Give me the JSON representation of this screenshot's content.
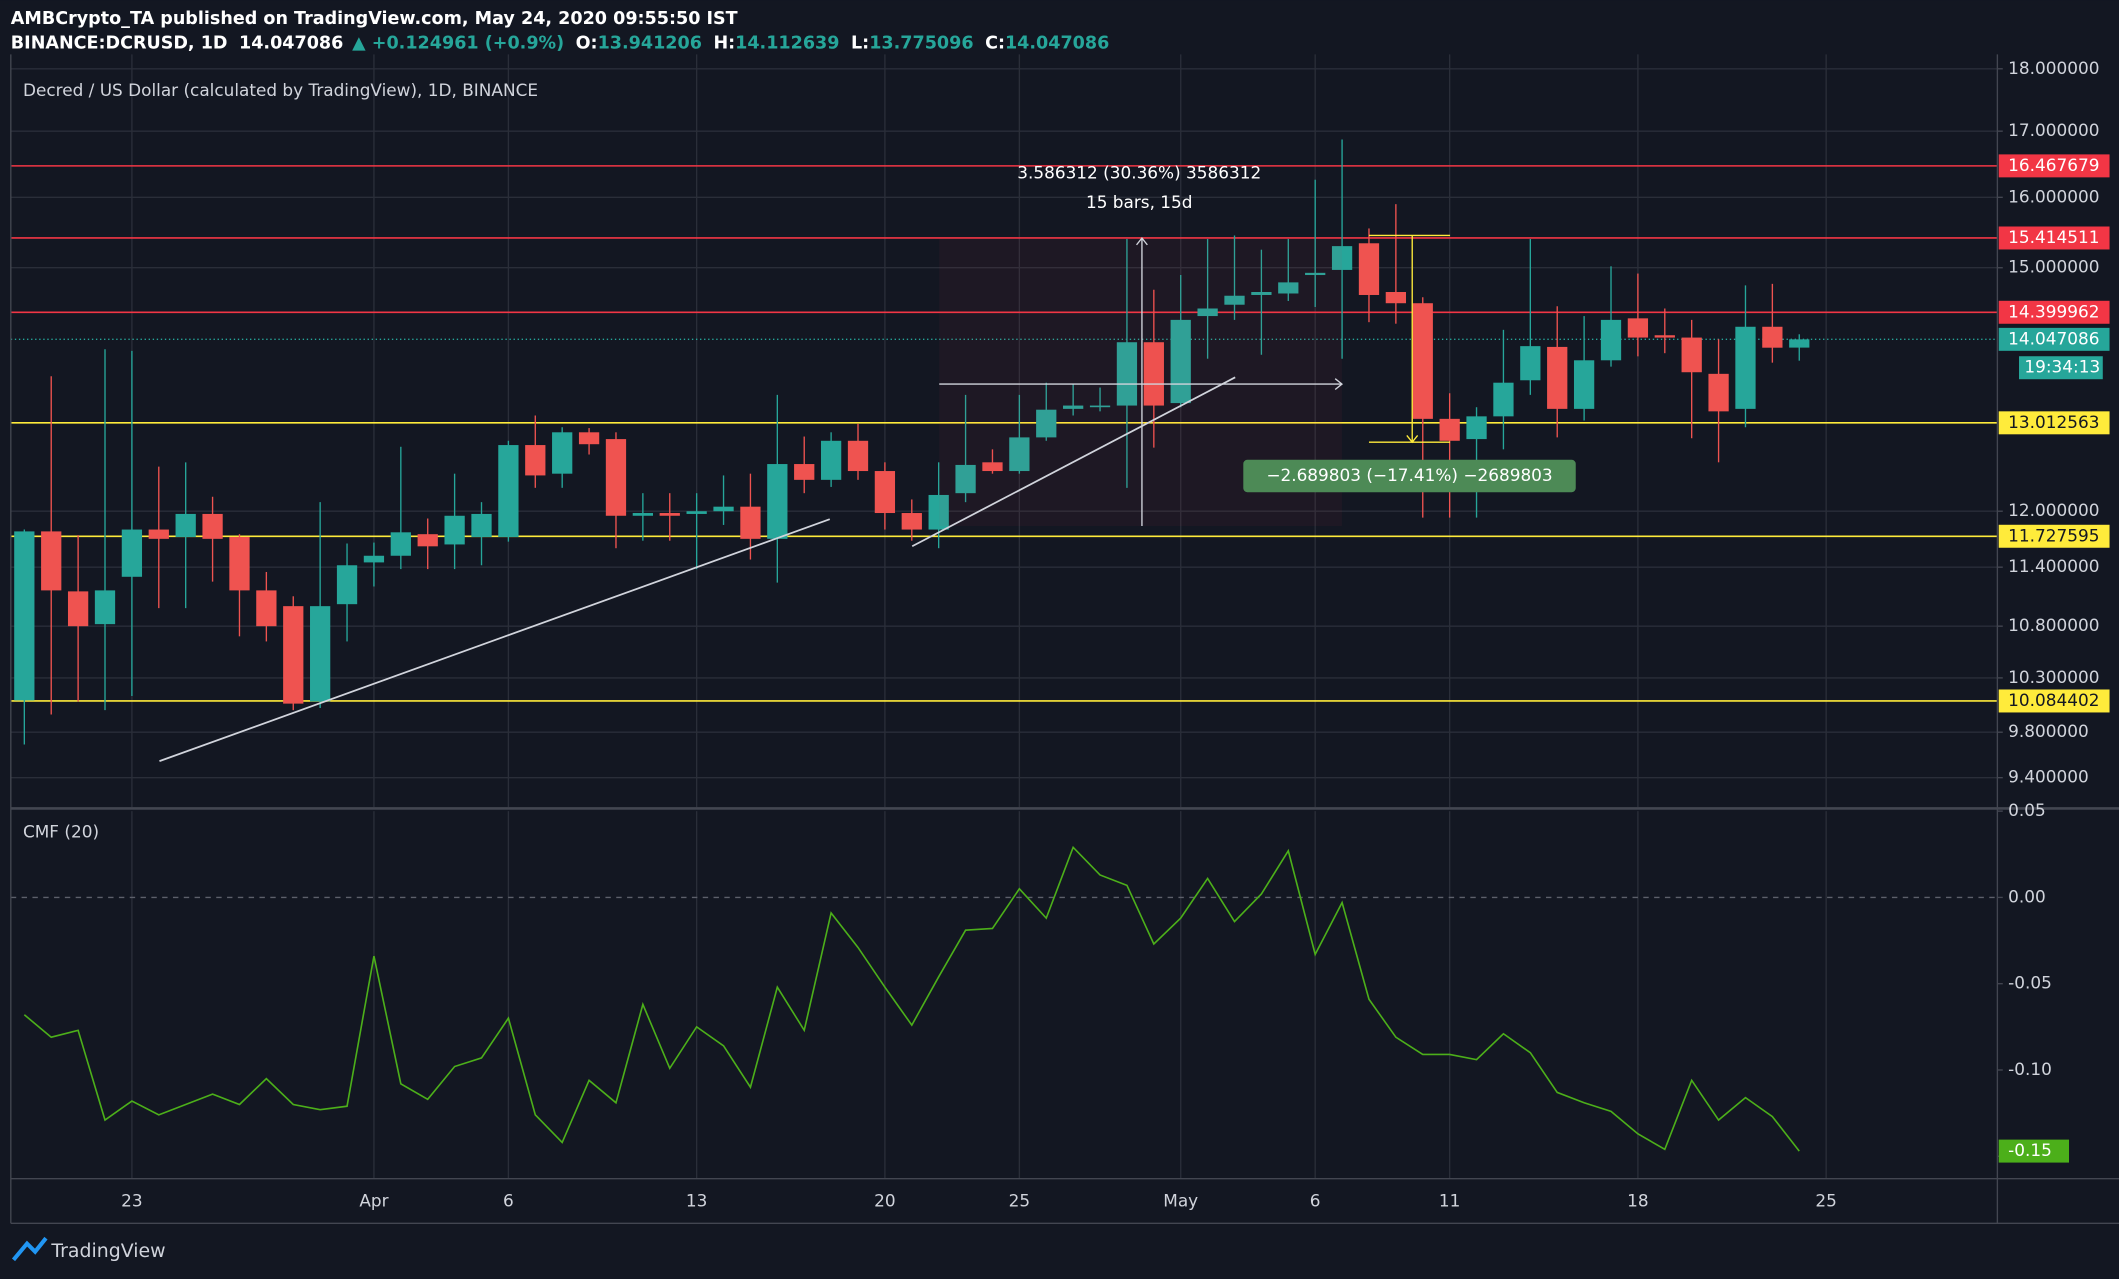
{
  "header": {
    "published": "AMBCrypto_TA published on TradingView.com, May 24, 2020 09:55:50 IST",
    "symbol": "BINANCE:DCRUSD, 1D",
    "price": "14.047086",
    "change": "▲ +0.124961 (+0.9%)",
    "ohlc": [
      {
        "label": "O:",
        "value": "13.941206"
      },
      {
        "label": "H:",
        "value": "14.112639"
      },
      {
        "label": "L:",
        "value": "13.775096"
      },
      {
        "label": "C:",
        "value": "14.047086"
      }
    ]
  },
  "footer": {
    "brand": "TradingView"
  },
  "chart_data": [
    {
      "type": "candlestick",
      "title": "Decred / US Dollar (calculated by TradingView), 1D, BINANCE",
      "categories": [
        null,
        null,
        null,
        null,
        "23",
        null,
        null,
        null,
        null,
        null,
        null,
        null,
        null,
        "Apr",
        null,
        null,
        null,
        null,
        "6",
        null,
        null,
        null,
        null,
        null,
        null,
        "13",
        null,
        null,
        null,
        null,
        null,
        null,
        "20",
        null,
        null,
        null,
        null,
        "25",
        null,
        null,
        null,
        null,
        null,
        "May",
        null,
        null,
        null,
        null,
        "6",
        null,
        null,
        null,
        null,
        "11",
        null,
        null,
        null,
        null,
        null,
        null,
        "18",
        null,
        null,
        null,
        null,
        null,
        null,
        "25"
      ],
      "open": [
        10.09,
        11.78,
        11.15,
        10.82,
        11.3,
        11.8,
        11.72,
        11.97,
        11.72,
        11.16,
        11.0,
        10.08,
        11.02,
        11.45,
        11.52,
        11.75,
        11.64,
        11.72,
        11.72,
        12.75,
        12.42,
        12.9,
        12.82,
        11.95,
        11.98,
        11.97,
        12.0,
        12.05,
        11.7,
        12.53,
        12.35,
        12.8,
        12.45,
        11.98,
        11.8,
        12.2,
        12.55,
        12.45,
        12.84,
        13.18,
        13.2,
        13.22,
        14.01,
        13.25,
        14.35,
        14.5,
        14.63,
        14.65,
        14.9,
        14.97,
        15.34,
        14.67,
        14.52,
        13.06,
        12.82,
        13.09,
        13.53,
        13.95,
        13.18,
        13.78,
        14.32,
        14.1,
        14.07,
        13.61,
        13.18,
        14.21,
        13.941206,
        null
      ],
      "high": [
        11.8,
        13.58,
        11.74,
        13.92,
        13.9,
        12.5,
        12.55,
        12.16,
        11.75,
        11.35,
        11.1,
        12.1,
        11.65,
        11.66,
        12.73,
        11.92,
        12.42,
        12.1,
        12.8,
        13.1,
        12.96,
        12.95,
        12.9,
        12.2,
        12.2,
        12.2,
        12.4,
        12.42,
        13.35,
        12.85,
        12.9,
        13.0,
        12.55,
        12.13,
        12.55,
        13.35,
        12.7,
        13.35,
        13.5,
        13.48,
        13.44,
        15.4,
        14.7,
        14.9,
        15.4,
        15.45,
        15.25,
        15.4,
        16.26,
        16.87,
        15.55,
        15.9,
        14.6,
        13.37,
        13.2,
        14.17,
        15.4,
        14.48,
        14.35,
        15.02,
        14.92,
        14.45,
        14.3,
        14.05,
        14.76,
        14.78,
        14.112639,
        null
      ],
      "low": [
        9.69,
        9.96,
        10.08,
        10.0,
        10.13,
        10.98,
        10.98,
        11.25,
        10.7,
        10.65,
        10.0,
        10.02,
        10.65,
        11.2,
        11.38,
        11.38,
        11.38,
        11.42,
        11.67,
        12.26,
        12.26,
        12.64,
        11.6,
        11.68,
        11.68,
        11.38,
        11.85,
        11.48,
        11.24,
        12.2,
        12.27,
        12.35,
        11.8,
        11.68,
        11.6,
        12.1,
        12.42,
        12.42,
        12.8,
        13.1,
        13.15,
        12.26,
        12.72,
        13.2,
        13.8,
        14.3,
        13.85,
        14.55,
        14.47,
        13.8,
        14.27,
        14.25,
        11.93,
        11.93,
        11.93,
        12.7,
        13.35,
        12.84,
        13.04,
        13.7,
        13.83,
        13.87,
        12.83,
        12.55,
        12.96,
        13.75,
        13.775096,
        null
      ],
      "close": [
        11.78,
        11.16,
        10.8,
        11.16,
        11.8,
        11.7,
        11.97,
        11.7,
        11.16,
        10.8,
        10.06,
        11.0,
        11.42,
        11.52,
        11.77,
        11.62,
        11.95,
        11.97,
        12.75,
        12.4,
        12.9,
        12.76,
        11.95,
        11.98,
        11.95,
        12.0,
        12.05,
        11.7,
        12.53,
        12.35,
        12.8,
        12.45,
        11.98,
        11.8,
        12.18,
        12.52,
        12.45,
        12.84,
        13.17,
        13.22,
        13.22,
        14.01,
        13.22,
        14.3,
        14.45,
        14.62,
        14.67,
        14.8,
        14.93,
        15.3,
        14.63,
        14.52,
        13.06,
        12.8,
        13.09,
        13.5,
        13.96,
        13.18,
        13.78,
        14.3,
        14.07,
        14.07,
        13.63,
        13.15,
        14.21,
        13.94,
        14.047086,
        null
      ],
      "up_color": "#26a69a",
      "down_color": "#ef5350",
      "log_scale": true,
      "ylim": [
        9.15,
        18.24
      ],
      "yticks": [
        {
          "value": 18,
          "label": "18.000000"
        },
        {
          "value": 17,
          "label": "17.000000"
        },
        {
          "value": 16,
          "label": "16.000000"
        },
        {
          "value": 15,
          "label": "15.000000"
        },
        {
          "value": 12,
          "label": "12.000000"
        },
        {
          "value": 11.4,
          "label": "11.400000"
        },
        {
          "value": 10.8,
          "label": "10.800000"
        },
        {
          "value": 10.3,
          "label": "10.300000"
        },
        {
          "value": 9.8,
          "label": "9.800000"
        },
        {
          "value": 9.4,
          "label": "9.400000"
        }
      ],
      "grid": true,
      "levels": [
        {
          "value": 16.467679,
          "color": "#f23645"
        },
        {
          "value": 15.414511,
          "color": "#f23645"
        },
        {
          "value": 14.399962,
          "color": "#f23645"
        },
        {
          "value": 13.012563,
          "color": "#ffeb3b"
        },
        {
          "value": 11.727595,
          "color": "#ffeb3b"
        },
        {
          "value": 10.084402,
          "color": "#ffeb3b"
        }
      ],
      "last_price": 14.047086,
      "countdown": "19:34:13",
      "last_color": "#26a69a",
      "annotations": [
        "3.586312 (30.36%) 3586312",
        "15 bars, 15d",
        "−2.689803 (−17.41%) −2689803"
      ]
    },
    {
      "type": "line",
      "title": "CMF (20)",
      "color": "#4caf1a",
      "values": [
        -0.068,
        -0.081,
        -0.077,
        -0.129,
        -0.118,
        -0.126,
        -0.12,
        -0.114,
        -0.12,
        -0.105,
        -0.12,
        -0.123,
        -0.121,
        -0.034,
        -0.108,
        -0.117,
        -0.098,
        -0.093,
        -0.07,
        -0.126,
        -0.142,
        -0.106,
        -0.119,
        -0.062,
        -0.099,
        -0.075,
        -0.086,
        -0.11,
        -0.052,
        -0.077,
        -0.009,
        -0.029,
        -0.052,
        -0.074,
        -0.046,
        -0.019,
        -0.018,
        0.005,
        -0.012,
        0.029,
        0.013,
        0.007,
        -0.027,
        -0.012,
        0.011,
        -0.014,
        0.002,
        0.027,
        -0.033,
        -0.003,
        -0.059,
        -0.081,
        -0.091,
        -0.091,
        -0.094,
        -0.079,
        -0.09,
        -0.113,
        -0.119,
        -0.124,
        -0.137,
        -0.146,
        -0.106,
        -0.129,
        -0.116,
        -0.127,
        -0.147,
        null
      ],
      "last_value_label": "-0.15",
      "ylim": [
        -0.163,
        0.05
      ],
      "yticks": [
        {
          "value": 0.05,
          "label": "0.05"
        },
        {
          "value": 0,
          "label": "0.00"
        },
        {
          "value": -0.05,
          "label": "-0.05"
        },
        {
          "value": -0.1,
          "label": "-0.10"
        },
        {
          "value": -0.15,
          "label": "-0.15"
        }
      ],
      "zero_line": true
    }
  ]
}
